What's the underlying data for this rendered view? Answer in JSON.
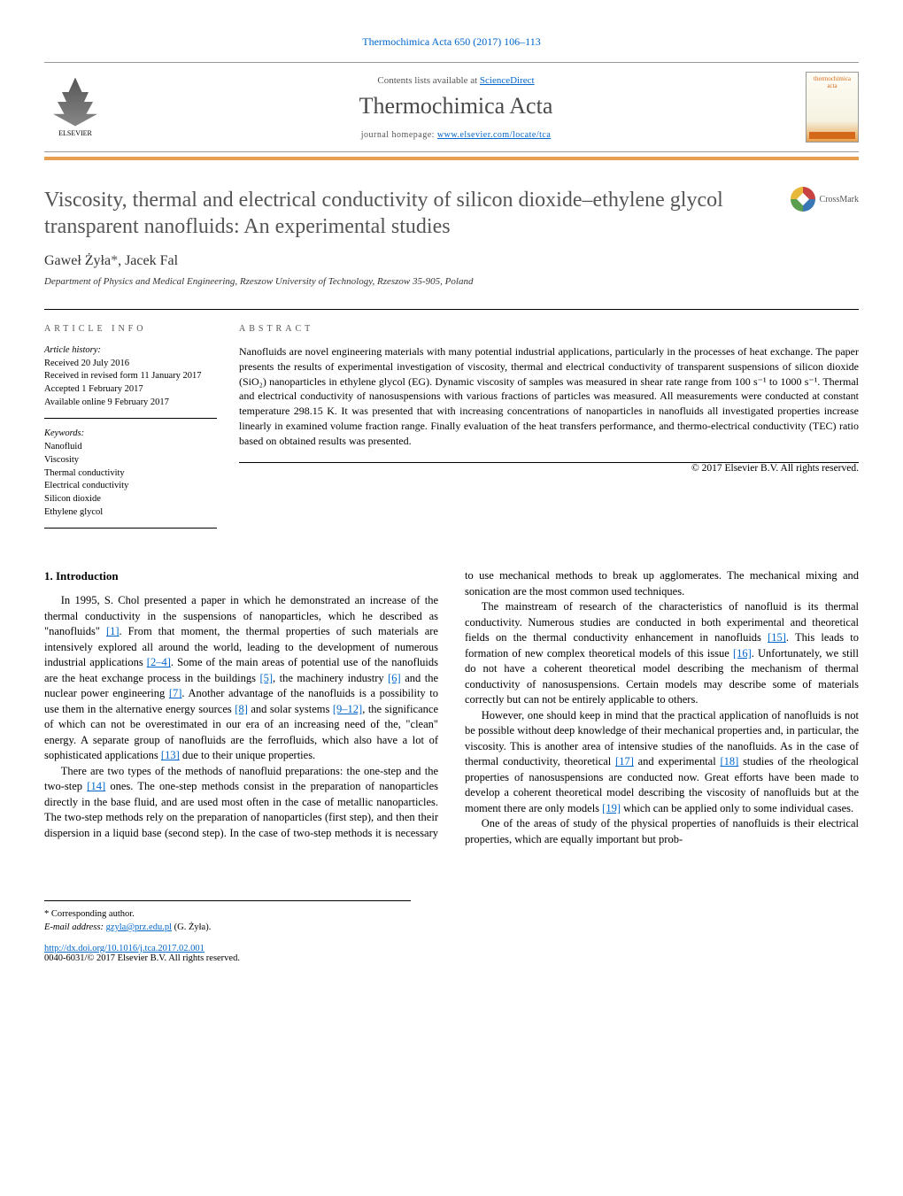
{
  "header": {
    "citation": "Thermochimica Acta 650 (2017) 106–113",
    "contents_prefix": "Contents lists available at ",
    "contents_link": "ScienceDirect",
    "journal_name": "Thermochimica Acta",
    "homepage_prefix": "journal homepage: ",
    "homepage_link": "www.elsevier.com/locate/tca",
    "publisher": "ELSEVIER",
    "cover_title": "thermochimica acta"
  },
  "colors": {
    "link": "#0066cc",
    "accent": "#e8a050",
    "title_gray": "#555555"
  },
  "article": {
    "title": "Viscosity, thermal and electrical conductivity of silicon dioxide–ethylene glycol transparent nanofluids: An experimental studies",
    "crossmark_label": "CrossMark",
    "author1": "Gaweł Żyła",
    "author1_mark": "*",
    "author_sep": ", ",
    "author2": "Jacek Fal",
    "affiliation": "Department of Physics and Medical Engineering, Rzeszow University of Technology, Rzeszow 35-905, Poland"
  },
  "meta": {
    "info_heading": "ARTICLE INFO",
    "history_label": "Article history:",
    "received": "Received 20 July 2016",
    "revised": "Received in revised form 11 January 2017",
    "accepted": "Accepted 1 February 2017",
    "online": "Available online 9 February 2017",
    "keywords_label": "Keywords:",
    "kw1": "Nanofluid",
    "kw2": "Viscosity",
    "kw3": "Thermal conductivity",
    "kw4": "Electrical conductivity",
    "kw5": "Silicon dioxide",
    "kw6": "Ethylene glycol"
  },
  "abstract": {
    "heading": "ABSTRACT",
    "text": "Nanofluids are novel engineering materials with many potential industrial applications, particularly in the processes of heat exchange. The paper presents the results of experimental investigation of viscosity, thermal and electrical conductivity of transparent suspensions of silicon dioxide (SiO₂) nanoparticles in ethylene glycol (EG). Dynamic viscosity of samples was measured in shear rate range from 100 s⁻¹ to 1000 s⁻¹. Thermal and electrical conductivity of nanosuspensions with various fractions of particles was measured. All measurements were conducted at constant temperature 298.15 K. It was presented that with increasing concentrations of nanoparticles in nanofluids all investigated properties increase linearly in examined volume fraction range. Finally evaluation of the heat transfers performance, and thermo-electrical conductivity (TEC) ratio based on obtained results was presented.",
    "copyright": "© 2017 Elsevier B.V. All rights reserved."
  },
  "body": {
    "section1_heading": "1. Introduction",
    "p1a": "In 1995, S. Chol presented a paper in which he demonstrated an increase of the thermal conductivity in the suspensions of nanoparticles, which he described as \"nanofluids\" ",
    "p1_ref1": "[1]",
    "p1b": ". From that moment, the thermal properties of such materials are intensively explored all around the world, leading to the development of numerous industrial applications ",
    "p1_ref2": "[2–4]",
    "p1c": ". Some of the main areas of potential use of the nanofluids are the heat exchange process in the buildings ",
    "p1_ref3": "[5]",
    "p1d": ", the machinery industry ",
    "p1_ref4": "[6]",
    "p1e": " and the nuclear power engineering ",
    "p1_ref5": "[7]",
    "p1f": ". Another advantage of the nanofluids is a possibility to use them in the alternative energy sources ",
    "p1_ref6": "[8]",
    "p1g": " and solar systems ",
    "p1_ref7": "[9–12]",
    "p1h": ", the significance of which can not be overestimated in our era of an increasing need of the, \"clean\" energy. A separate group of nanofluids are the ferrofluids, which also have a lot of sophisticated applications ",
    "p1_ref8": "[13]",
    "p1i": " due to their unique properties.",
    "p2a": "There are two types of the methods of nanofluid preparations: the one-step and the two-step ",
    "p2_ref1": "[14]",
    "p2b": " ones. The one-step methods consist in the preparation of nanoparticles directly in the base fluid, and are used most often in the case of metallic nanoparticles. The two-step methods rely on the preparation of nanoparticles (first step), and then their dispersion in a liquid base (second step). In the case of two-step methods it is necessary to use mechanical methods to break up agglomerates. The mechanical mixing and sonication are the most common used techniques.",
    "p3a": "The mainstream of research of the characteristics of nanofluid is its thermal conductivity. Numerous studies are conducted in both experimental and theoretical fields on the thermal conductivity enhancement in nanofluids ",
    "p3_ref1": "[15]",
    "p3b": ". This leads to formation of new complex theoretical models of this issue ",
    "p3_ref2": "[16]",
    "p3c": ". Unfortunately, we still do not have a coherent theoretical model describing the mechanism of thermal conductivity of nanosuspensions. Certain models may describe some of materials correctly but can not be entirely applicable to others.",
    "p4a": "However, one should keep in mind that the practical application of nanofluids is not be possible without deep knowledge of their mechanical properties and, in particular, the viscosity. This is another area of intensive studies of the nanofluids. As in the case of thermal conductivity, theoretical ",
    "p4_ref1": "[17]",
    "p4b": " and experimental ",
    "p4_ref2": "[18]",
    "p4c": " studies of the rheological properties of nanosuspensions are conducted now. Great efforts have been made to develop a coherent theoretical model describing the viscosity of nanofluids but at the moment there are only models ",
    "p4_ref3": "[19]",
    "p4d": " which can be applied only to some individual cases.",
    "p5": "One of the areas of study of the physical properties of nanofluids is their electrical properties, which are equally important but prob-"
  },
  "footer": {
    "corr_label": "* Corresponding author.",
    "email_label": "E-mail address: ",
    "email": "gzyla@prz.edu.pl",
    "email_suffix": " (G. Żyła).",
    "doi": "http://dx.doi.org/10.1016/j.tca.2017.02.001",
    "issn_copyright": "0040-6031/© 2017 Elsevier B.V. All rights reserved."
  }
}
